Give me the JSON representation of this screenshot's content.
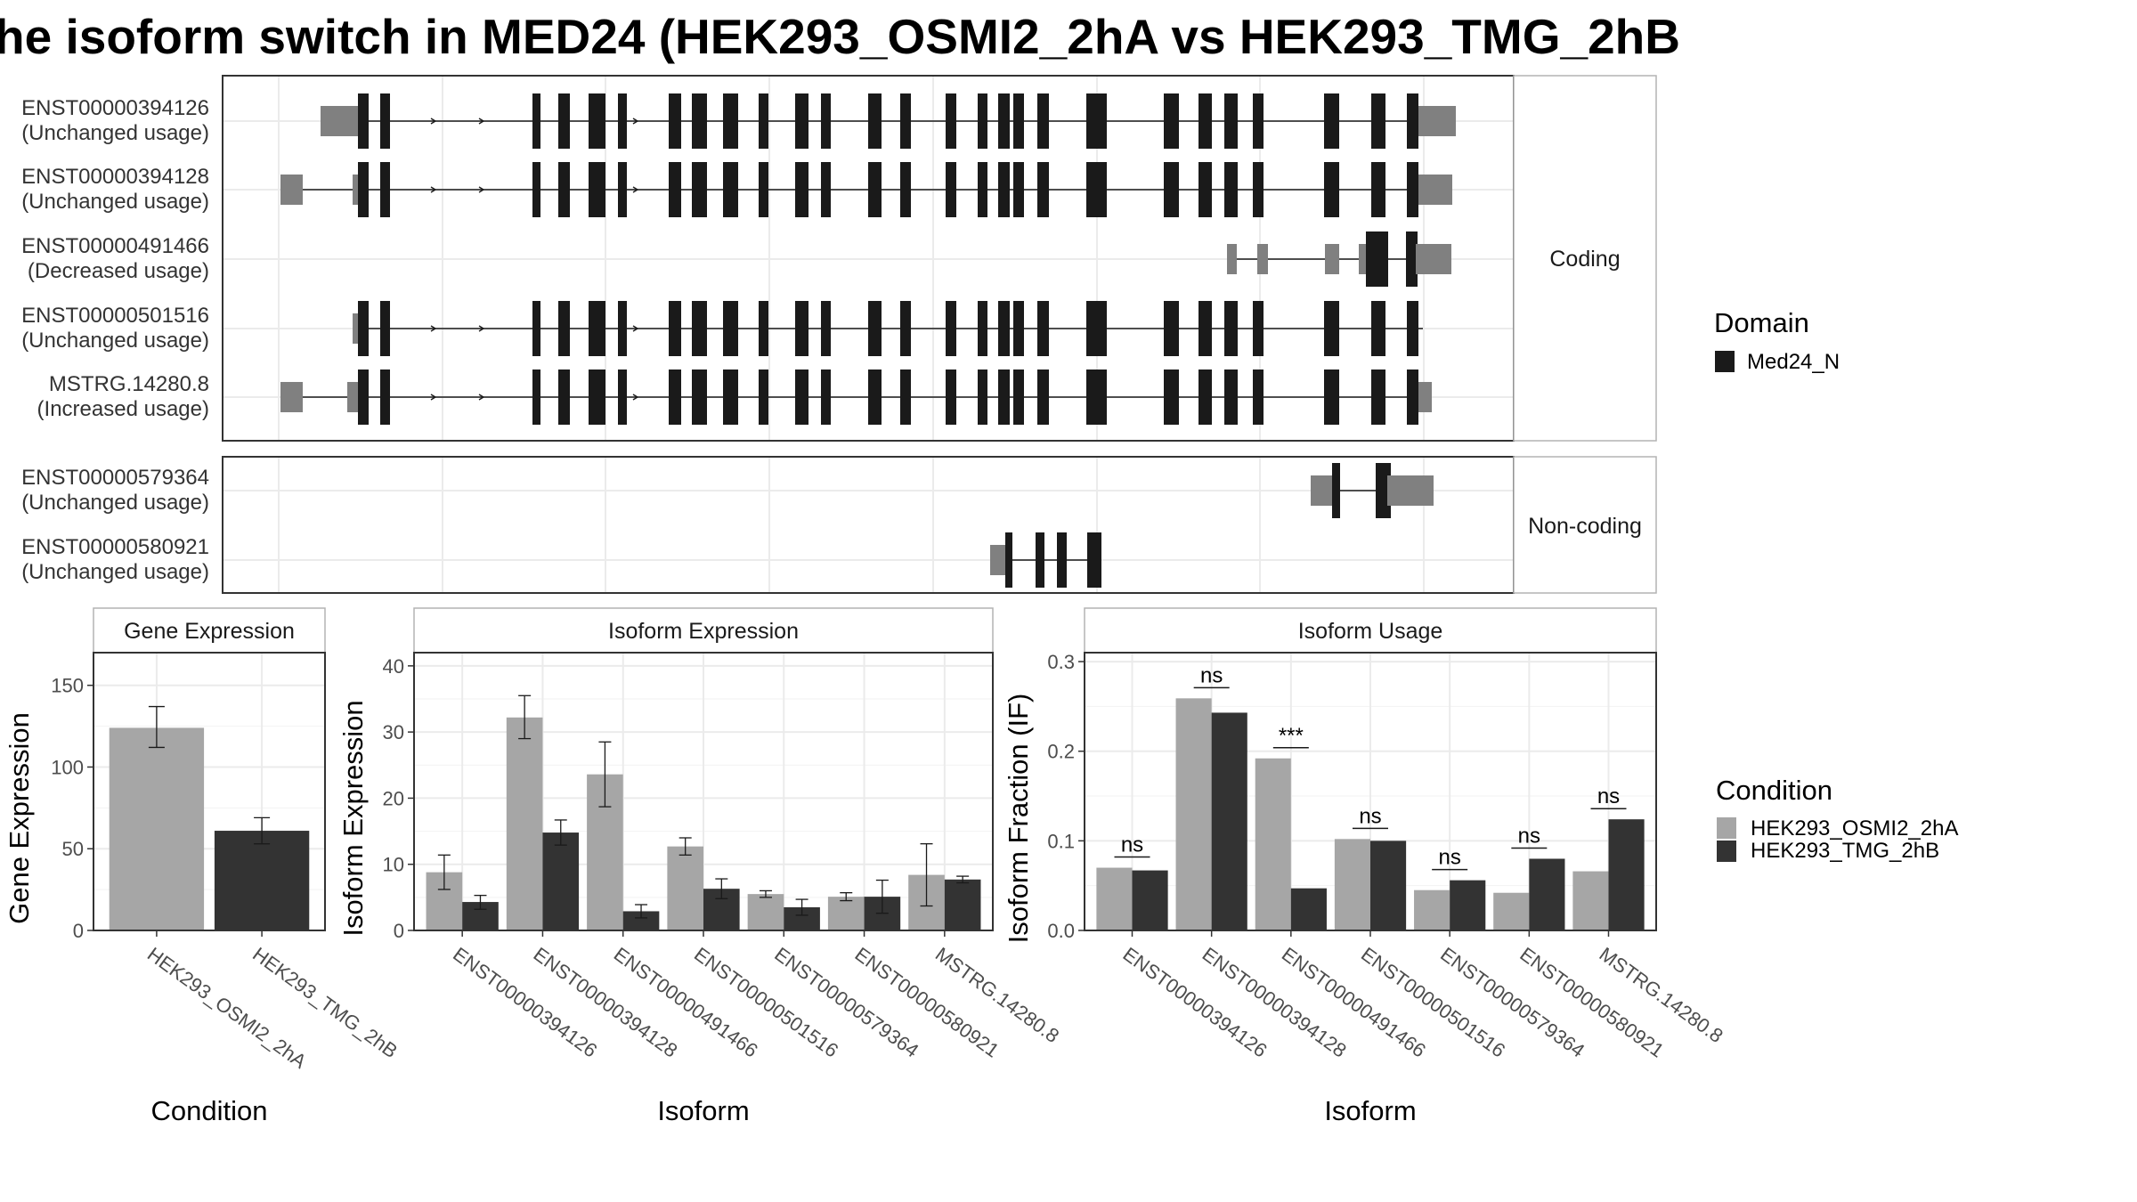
{
  "title": "he isoform switch in MED24 (HEK293_OSMI2_2hA vs HEK293_TMG_2hB",
  "colors": {
    "exon_domain": "#1a1a1a",
    "exon_utr": "#808080",
    "cond_a": "#a6a6a6",
    "cond_b": "#333333",
    "grid": "#ebebeb",
    "panel_border": "#333333",
    "strip_border": "#b3b3b3"
  },
  "transcripts": {
    "coding": {
      "strip_label": "Coding",
      "rows": [
        {
          "id": "ENST00000394126",
          "usage": "(Unchanged usage)"
        },
        {
          "id": "ENST00000394128",
          "usage": "(Unchanged usage)"
        },
        {
          "id": "ENST00000491466",
          "usage": "(Decreased usage)"
        },
        {
          "id": "ENST00000501516",
          "usage": "(Unchanged usage)"
        },
        {
          "id": "MSTRG.14280.8",
          "usage": "(Increased usage)"
        }
      ]
    },
    "noncoding": {
      "strip_label": "Non-coding",
      "rows": [
        {
          "id": "ENST00000579364",
          "usage": "(Unchanged usage)"
        },
        {
          "id": "ENST00000580921",
          "usage": "(Unchanged usage)"
        }
      ]
    }
  },
  "legend_domain": {
    "title": "Domain",
    "items": [
      {
        "label": "Med24_N",
        "color": "#1a1a1a"
      }
    ]
  },
  "legend_condition": {
    "title": "Condition",
    "items": [
      {
        "label": "HEK293_OSMI2_2hA",
        "color": "#a6a6a6"
      },
      {
        "label": "HEK293_TMG_2hB",
        "color": "#333333"
      }
    ]
  },
  "chart_data": [
    {
      "type": "bar",
      "title": "Gene Expression",
      "xlabel": "Condition",
      "ylabel": "Gene Expression",
      "ylim": [
        0,
        170
      ],
      "yticks": [
        0,
        50,
        100,
        150
      ],
      "grid": true,
      "categories": [
        "HEK293_OSMI2_2hA",
        "HEK293_TMG_2hB"
      ],
      "values": [
        124,
        61
      ],
      "error_low": [
        112,
        53
      ],
      "error_high": [
        137,
        69
      ],
      "colors": [
        "#a6a6a6",
        "#333333"
      ]
    },
    {
      "type": "bar",
      "title": "Isoform Expression",
      "xlabel": "Isoform",
      "ylabel": "Isoform Expression",
      "ylim": [
        0,
        42
      ],
      "yticks": [
        0,
        10,
        20,
        30,
        40
      ],
      "grid": true,
      "categories": [
        "ENST00000394126",
        "ENST00000394128",
        "ENST00000491466",
        "ENST00000501516",
        "ENST00000579364",
        "ENST00000580921",
        "MSTRG.14280.8"
      ],
      "series": [
        {
          "name": "HEK293_OSMI2_2hA",
          "values": [
            8.8,
            32.2,
            23.6,
            12.7,
            5.5,
            5.1,
            8.4
          ],
          "error_low": [
            6.2,
            29.0,
            18.7,
            11.4,
            5.0,
            4.5,
            3.7
          ],
          "error_high": [
            11.4,
            35.5,
            28.5,
            14.0,
            6.0,
            5.7,
            13.1
          ]
        },
        {
          "name": "HEK293_TMG_2hB",
          "values": [
            4.3,
            14.8,
            2.9,
            6.3,
            3.5,
            5.1,
            7.7
          ],
          "error_low": [
            3.2,
            12.9,
            1.9,
            4.8,
            2.3,
            2.6,
            7.2
          ],
          "error_high": [
            5.3,
            16.7,
            3.9,
            7.8,
            4.7,
            7.6,
            8.2
          ]
        }
      ]
    },
    {
      "type": "bar",
      "title": "Isoform Usage",
      "xlabel": "Isoform",
      "ylabel": "Isoform Fraction (IF)",
      "ylim": [
        0,
        0.31
      ],
      "yticks": [
        0.0,
        0.1,
        0.2,
        0.3
      ],
      "grid": true,
      "categories": [
        "ENST00000394126",
        "ENST00000394128",
        "ENST00000491466",
        "ENST00000501516",
        "ENST00000579364",
        "ENST00000580921",
        "MSTRG.14280.8"
      ],
      "series": [
        {
          "name": "HEK293_OSMI2_2hA",
          "values": [
            0.07,
            0.259,
            0.192,
            0.102,
            0.045,
            0.042,
            0.066
          ]
        },
        {
          "name": "HEK293_TMG_2hB",
          "values": [
            0.067,
            0.243,
            0.047,
            0.1,
            0.056,
            0.08,
            0.124
          ]
        }
      ],
      "significance": [
        "ns",
        "ns",
        "***",
        "ns",
        "ns",
        "ns",
        "ns"
      ]
    }
  ]
}
